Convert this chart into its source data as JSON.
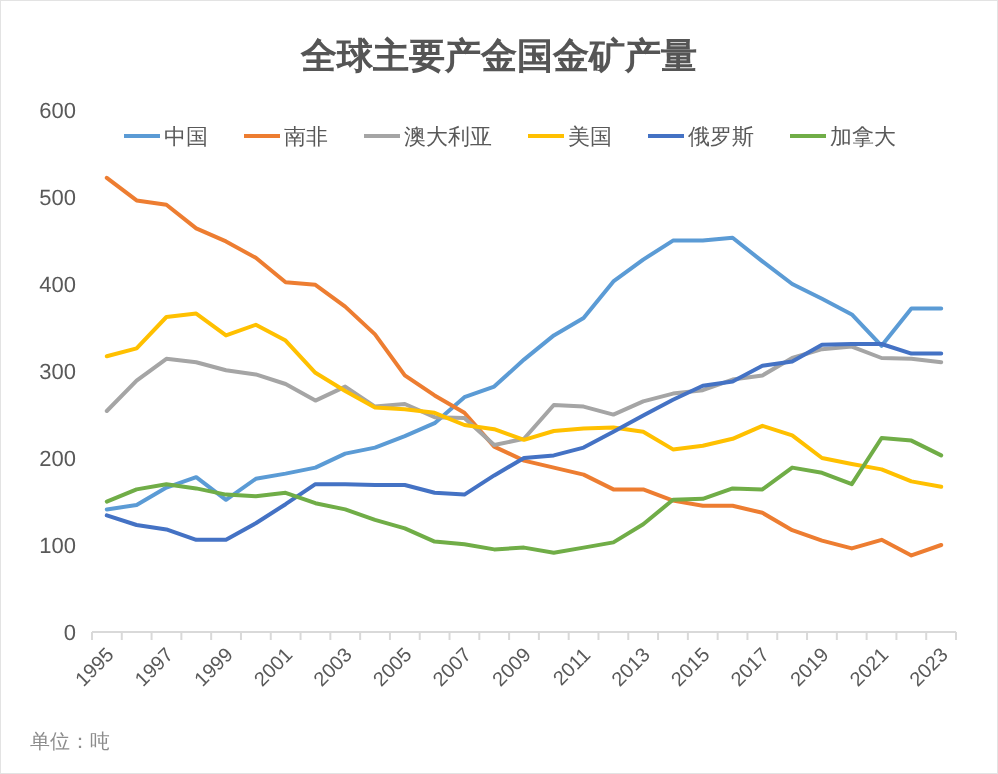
{
  "chart_data": {
    "type": "line",
    "title": "全球主要产金国金矿产量",
    "categories": [
      "1995",
      null,
      "1997",
      null,
      "1999",
      null,
      "2001",
      null,
      "2003",
      null,
      "2005",
      null,
      "2007",
      null,
      "2009",
      null,
      "2011",
      null,
      "2013",
      null,
      "2015",
      null,
      "2017",
      null,
      "2019",
      null,
      "2021",
      null,
      "2023"
    ],
    "series": [
      {
        "name": "中国",
        "color": "#5b9bd5",
        "values": [
          141,
          146,
          166,
          178,
          152,
          176,
          182,
          189,
          205,
          212,
          225,
          240,
          270,
          282,
          313,
          341,
          361,
          403,
          428,
          450,
          450,
          453,
          426,
          400,
          383,
          365,
          329,
          372,
          372
        ]
      },
      {
        "name": "南非",
        "color": "#ed7d31",
        "values": [
          522,
          496,
          491,
          464,
          449,
          430,
          402,
          399,
          374,
          342,
          295,
          272,
          252,
          213,
          197,
          189,
          181,
          164,
          164,
          151,
          145,
          145,
          137,
          117,
          105,
          96,
          106,
          88,
          100
        ]
      },
      {
        "name": "澳大利亚",
        "color": "#a5a5a5",
        "values": [
          254,
          289,
          314,
          310,
          301,
          296,
          285,
          266,
          282,
          259,
          262,
          247,
          246,
          215,
          222,
          261,
          259,
          250,
          265,
          274,
          278,
          290,
          295,
          315,
          325,
          328,
          315,
          314,
          310
        ]
      },
      {
        "name": "美国",
        "color": "#ffc000",
        "values": [
          317,
          326,
          362,
          366,
          341,
          353,
          335,
          298,
          277,
          258,
          256,
          252,
          238,
          233,
          221,
          231,
          234,
          235,
          230,
          210,
          214,
          222,
          237,
          226,
          200,
          193,
          187,
          173,
          167
        ]
      },
      {
        "name": "俄罗斯",
        "color": "#4472c4",
        "values": [
          134,
          123,
          118,
          106,
          106,
          125,
          147,
          170,
          170,
          169,
          169,
          160,
          158,
          180,
          200,
          203,
          212,
          230,
          249,
          267,
          283,
          288,
          306,
          311,
          330,
          331,
          331,
          320,
          320
        ]
      },
      {
        "name": "加拿大",
        "color": "#70ad47",
        "values": [
          150,
          164,
          170,
          165,
          158,
          156,
          160,
          148,
          141,
          129,
          119,
          104,
          101,
          95,
          97,
          91,
          97,
          103,
          124,
          152,
          153,
          165,
          164,
          189,
          183,
          170,
          223,
          220,
          203
        ]
      }
    ],
    "ylim": [
      0,
      600
    ],
    "yticks": [
      0,
      100,
      200,
      300,
      400,
      500,
      600
    ],
    "grid": false,
    "legend": "top",
    "marker": "none",
    "line_style": "solid",
    "annotations": [
      "单位：吨"
    ]
  }
}
